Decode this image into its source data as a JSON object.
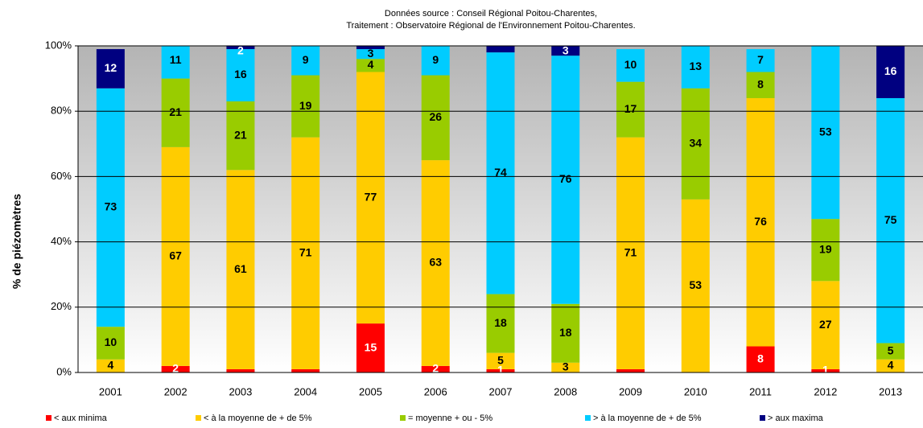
{
  "chart_data": {
    "type": "stacked_bar",
    "title": [
      "Données source : Conseil Régional Poitou-Charentes,",
      "Traitement : Observatoire Régional de l'Environnement Poitou-Charentes."
    ],
    "y_label": "% de piézomètres",
    "categories": [
      "2001",
      "2002",
      "2003",
      "2004",
      "2005",
      "2006",
      "2007",
      "2008",
      "2009",
      "2010",
      "2011",
      "2012",
      "2013"
    ],
    "ylim": [
      0,
      100
    ],
    "yticks": [
      {
        "value": 0,
        "label": "0%"
      },
      {
        "value": 20,
        "label": "20%"
      },
      {
        "value": 40,
        "label": "40%"
      },
      {
        "value": 60,
        "label": "60%"
      },
      {
        "value": 80,
        "label": "80%"
      },
      {
        "value": 100,
        "label": "100%"
      }
    ],
    "grid": true,
    "legend": "bottom",
    "series": [
      {
        "name": "< aux minima",
        "color": "#ff0000",
        "label_color": "#ffffff",
        "values": [
          0,
          2,
          1,
          1,
          15,
          2,
          1,
          0,
          1,
          0,
          8,
          1,
          0
        ],
        "value_labels": [
          null,
          "2",
          null,
          null,
          "15",
          "2",
          "1",
          null,
          null,
          null,
          "8",
          "1",
          null
        ]
      },
      {
        "name": "< à la moyenne de + de 5%",
        "color": "#ffcc00",
        "label_color": "#000000",
        "values": [
          4,
          67,
          61,
          71,
          77,
          63,
          5,
          3,
          71,
          53,
          76,
          27,
          4
        ],
        "value_labels": [
          "4",
          "67",
          "61",
          "71",
          "77",
          "63",
          "5",
          "3",
          "71",
          "53",
          "76",
          "27",
          "4"
        ]
      },
      {
        "name": "= moyenne + ou - 5%",
        "color": "#99cc00",
        "label_color": "#000000",
        "values": [
          10,
          21,
          21,
          19,
          4,
          26,
          18,
          18,
          17,
          34,
          8,
          19,
          5
        ],
        "value_labels": [
          "10",
          "21",
          "21",
          "19",
          "4",
          "26",
          "18",
          "18",
          "17",
          "34",
          "8",
          "19",
          "5"
        ]
      },
      {
        "name": "> à la moyenne de + de 5%",
        "color": "#00ccff",
        "label_color": "#000000",
        "values": [
          73,
          11,
          16,
          9,
          3,
          9,
          74,
          76,
          10,
          13,
          7,
          53,
          75
        ],
        "value_labels": [
          "73",
          "11",
          "16",
          "9",
          "3",
          "9",
          "74",
          "76",
          "10",
          "13",
          "7",
          "53",
          "75"
        ]
      },
      {
        "name": "> aux maxima",
        "color": "#000080",
        "label_color": "#ffffff",
        "values": [
          12,
          0,
          2,
          0,
          1,
          0,
          2,
          3,
          0,
          0,
          0,
          0,
          16
        ],
        "value_labels": [
          "12",
          null,
          "2",
          null,
          null,
          null,
          null,
          "3",
          null,
          null,
          null,
          null,
          "16"
        ]
      }
    ]
  }
}
